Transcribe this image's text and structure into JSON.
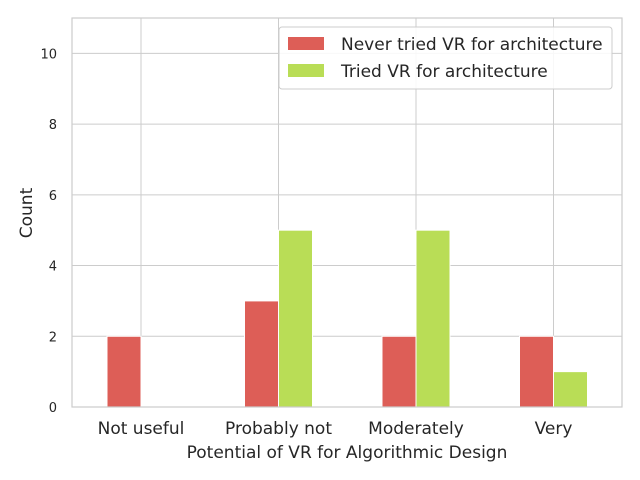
{
  "chart_data": {
    "type": "bar",
    "title": "",
    "xlabel": "Potential of VR for Algorithmic Design",
    "ylabel": "Count",
    "categories": [
      "Not useful",
      "Probably not",
      "Moderately",
      "Very"
    ],
    "ylim": [
      0,
      11
    ],
    "yticks": [
      0,
      2,
      4,
      6,
      8,
      10
    ],
    "grid": true,
    "legend_position": "top-right",
    "series": [
      {
        "name": "Never tried VR for architecture",
        "color": "#dd5e57",
        "values": [
          2,
          3,
          2,
          2
        ]
      },
      {
        "name": "Tried VR for architecture",
        "color": "#b9dd56",
        "values": [
          0,
          5,
          5,
          1
        ]
      }
    ]
  }
}
